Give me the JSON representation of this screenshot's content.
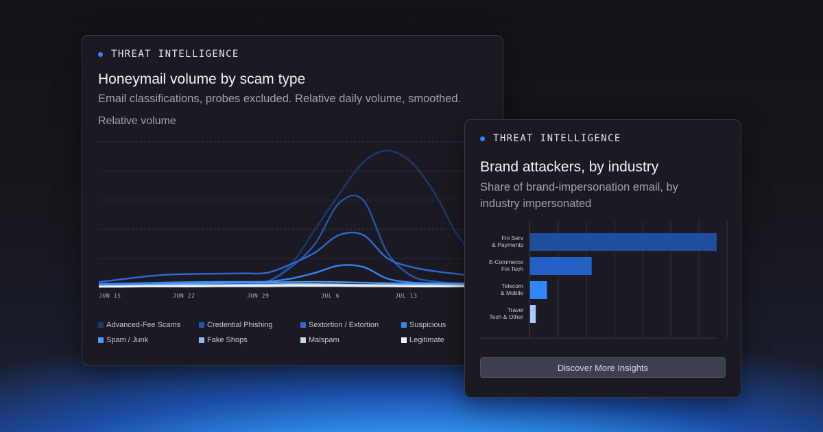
{
  "volume_card": {
    "eyebrow": "THREAT INTELLIGENCE",
    "title": "Honeymail volume by scam type",
    "subtitle": "Email classifications, probes excluded. Relative daily volume, smoothed.",
    "ylabel": "Relative volume"
  },
  "brand_card": {
    "eyebrow": "THREAT INTELLIGENCE",
    "title": "Brand attackers, by industry",
    "subtitle": "Share of brand-impersonation email, by industry impersonated",
    "cta_label": "Discover More Insights"
  },
  "colors": {
    "accent_dot": "#2f86ff",
    "card_bg": "#1b1a22",
    "grid": "#3a3945"
  },
  "chart_data": [
    {
      "type": "line",
      "title": "Honeymail volume by scam type",
      "ylabel": "Relative volume",
      "grid": true,
      "legend": "bottom",
      "x_ticks": [
        "JUN 15",
        "JUN 22",
        "JUN 29",
        "JUL 6",
        "JUL 13"
      ],
      "x": [
        "Jun 15",
        "Jun 17",
        "Jun 19",
        "Jun 21",
        "Jun 23",
        "Jun 25",
        "Jun 27",
        "Jun 29",
        "Jul 1",
        "Jul 3",
        "Jul 5",
        "Jul 7",
        "Jul 9",
        "Jul 11",
        "Jul 13",
        "Jul 15",
        "Jul 17",
        "Jul 19",
        "Jul 21"
      ],
      "ylim": [
        0,
        5
      ],
      "series": [
        {
          "name": "Advanced-Fee Scams",
          "color": "#1a3a70",
          "values": [
            0.1,
            0.1,
            0.1,
            0.12,
            0.14,
            0.15,
            0.15,
            0.2,
            0.8,
            2.0,
            3.2,
            4.3,
            4.7,
            4.3,
            3.2,
            1.7,
            1.0,
            1.6,
            2.9
          ]
        },
        {
          "name": "Credential Phishing",
          "color": "#2256ad",
          "values": [
            0.1,
            0.1,
            0.12,
            0.14,
            0.16,
            0.17,
            0.18,
            0.2,
            0.7,
            1.5,
            2.9,
            3.0,
            1.2,
            0.4,
            0.2,
            0.15,
            0.15,
            0.2,
            0.25
          ]
        },
        {
          "name": "Sextortion / Extortion",
          "color": "#2d6ad6",
          "values": [
            0.18,
            0.28,
            0.38,
            0.44,
            0.46,
            0.47,
            0.48,
            0.5,
            0.8,
            1.2,
            1.8,
            1.8,
            1.0,
            0.7,
            0.55,
            0.45,
            0.35,
            0.3,
            0.35
          ]
        },
        {
          "name": "Suspicious",
          "color": "#3585f2",
          "values": [
            0.12,
            0.13,
            0.15,
            0.17,
            0.18,
            0.19,
            0.19,
            0.2,
            0.3,
            0.5,
            0.75,
            0.7,
            0.3,
            0.17,
            0.14,
            0.13,
            0.13,
            0.14,
            0.15
          ]
        },
        {
          "name": "Spam / Junk",
          "color": "#4a9bf2",
          "values": [
            0.06,
            0.07,
            0.09,
            0.12,
            0.14,
            0.15,
            0.16,
            0.17,
            0.18,
            0.19,
            0.18,
            0.16,
            0.14,
            0.12,
            0.11,
            0.11,
            0.12,
            0.14,
            0.18
          ]
        },
        {
          "name": "Fake Shops",
          "color": "#8fbcf5",
          "values": [
            0.04,
            0.05,
            0.06,
            0.07,
            0.08,
            0.08,
            0.09,
            0.1,
            0.11,
            0.11,
            0.1,
            0.09,
            0.08,
            0.07,
            0.07,
            0.07,
            0.08,
            0.1,
            0.12
          ]
        },
        {
          "name": "Malspam",
          "color": "#c9d6ea",
          "values": [
            0.03,
            0.04,
            0.05,
            0.05,
            0.06,
            0.06,
            0.07,
            0.07,
            0.08,
            0.08,
            0.08,
            0.07,
            0.06,
            0.05,
            0.05,
            0.05,
            0.06,
            0.07,
            0.08
          ]
        },
        {
          "name": "Legitimate",
          "color": "#f2f4f8",
          "values": [
            0.02,
            0.02,
            0.03,
            0.03,
            0.03,
            0.04,
            0.04,
            0.04,
            0.05,
            0.05,
            0.05,
            0.04,
            0.04,
            0.03,
            0.03,
            0.03,
            0.04,
            0.04,
            0.05
          ]
        }
      ]
    },
    {
      "type": "bar",
      "orientation": "horizontal",
      "title": "Brand attackers, by industry",
      "grid": true,
      "xlim": [
        0,
        100
      ],
      "categories": [
        [
          "Fin Serv",
          "& Payments"
        ],
        [
          "E-Commerce",
          "Fin Tech"
        ],
        [
          "Telecom",
          "& Mobile"
        ],
        [
          "Travel",
          "Tech & Other"
        ]
      ],
      "values": [
        100,
        33,
        9,
        3
      ],
      "colors": [
        "#1f4f9c",
        "#2361c4",
        "#2f86ff",
        "#a6cbff"
      ]
    }
  ]
}
